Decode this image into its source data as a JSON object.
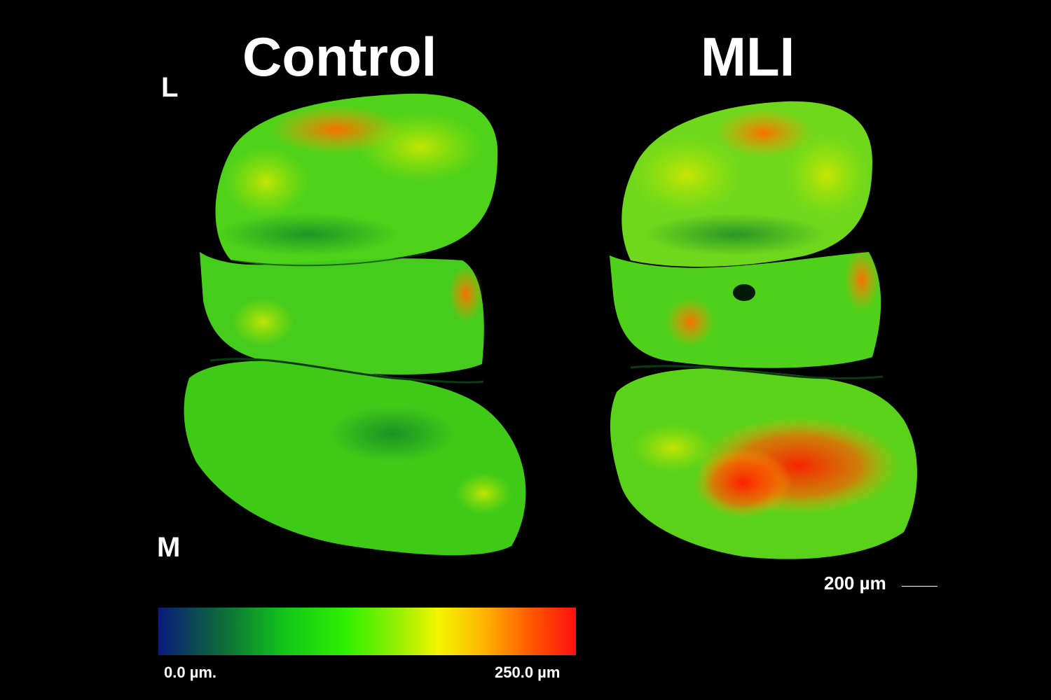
{
  "panels": [
    {
      "title": "Control"
    },
    {
      "title": "MLI"
    }
  ],
  "orientation": {
    "top": "L",
    "bottom": "M"
  },
  "scale_bar": {
    "label": "200 µm"
  },
  "colorbar": {
    "min_label": "0.0 µm.",
    "max_label": "250.0 µm",
    "colors": [
      "#0a1a7a",
      "#12c41a",
      "#f5f500",
      "#ff1010"
    ]
  }
}
